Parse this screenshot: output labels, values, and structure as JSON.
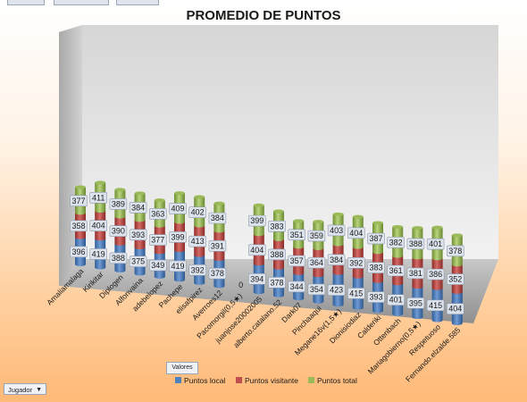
{
  "chart_data": {
    "type": "bar",
    "stacked": true,
    "title": "PROMEDIO DE PUNTOS",
    "categories": [
      "Amaliamalaga",
      "Kirikitar",
      "Diplogen",
      "Alfonvaina",
      "adebelopez",
      "Pachepe",
      "elisafpirez",
      "Averroes12",
      "Pacomorgil(0,5★)",
      "juanjose20002005",
      "alberto.catalano.52",
      "Dark07",
      "Pinchaaqui",
      "Megane16v(1,5★)",
      "Dionisiodiaz",
      "Calderiki",
      "Ottenbach",
      "Mariagobierno(0,5★)",
      "Respetuoso",
      "Fernando.elzalde.585"
    ],
    "series": [
      {
        "name": "Puntos local",
        "color": "#4f81bd",
        "values": [
          396,
          419,
          388,
          375,
          349,
          419,
          392,
          378,
          0,
          394,
          378,
          344,
          354,
          423,
          415,
          393,
          401,
          395,
          415,
          404
        ]
      },
      {
        "name": "Puntos visitante",
        "color": "#c0504d",
        "values": [
          358,
          404,
          390,
          393,
          377,
          399,
          413,
          391,
          0,
          404,
          388,
          357,
          364,
          384,
          392,
          383,
          361,
          381,
          386,
          352
        ]
      },
      {
        "name": "Puntos total",
        "color": "#9bbb59",
        "values": [
          377,
          411,
          389,
          384,
          363,
          409,
          402,
          384,
          0,
          399,
          383,
          351,
          359,
          403,
          404,
          387,
          382,
          388,
          401,
          378
        ]
      }
    ],
    "zero_label": "0",
    "legend_position": "bottom",
    "grid": false
  },
  "ui": {
    "values_field": "Valores",
    "jugador_field": "Jugador",
    "dropdown_glyph": "▼"
  }
}
